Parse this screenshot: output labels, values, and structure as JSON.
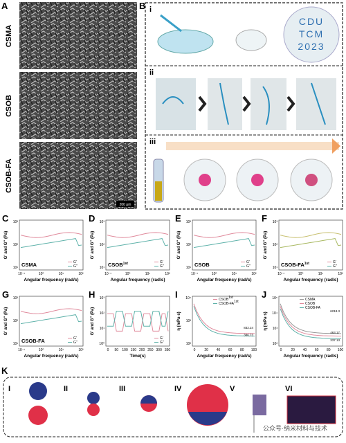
{
  "panel_a": {
    "label": "A",
    "samples": [
      "CSMA",
      "CSOB",
      "CSOB-FA"
    ],
    "scale_bar": "200 μm"
  },
  "panel_b": {
    "label": "B",
    "steps": [
      "i",
      "ii",
      "iii"
    ],
    "dish_text": [
      "CDU",
      "TCM",
      "2023"
    ]
  },
  "charts": [
    {
      "label": "C",
      "sample": {
        "name": "CSMA"
      },
      "ylabel": "G' and G'' (Pa)",
      "xlabel": "Angular frequency (rad/s)",
      "legend": [
        "G'",
        "G''"
      ],
      "yticks": [
        "10³",
        "10²",
        "10¹"
      ],
      "xticks": [
        "10⁻¹",
        "10⁰",
        "10¹",
        "10²"
      ]
    },
    {
      "label": "D",
      "sample": {
        "name": "CSOB",
        "sup": "1st"
      },
      "ylabel": "G' and G'' (Pa)",
      "xlabel": "Angular frequency (rad/s)",
      "legend": [
        "G'",
        "G''"
      ],
      "yticks": [
        "10³",
        "10²",
        "10¹"
      ],
      "xticks": [
        "10⁻¹",
        "10⁰",
        "10¹",
        "10²"
      ]
    },
    {
      "label": "E",
      "sample": {
        "name": "CSOB"
      },
      "ylabel": "G' and G'' (Pa)",
      "xlabel": "Angular frequency (rad/s)",
      "legend": [
        "G'",
        "G''"
      ],
      "yticks": [
        "10³",
        "10²",
        "10¹"
      ],
      "xticks": [
        "10⁻¹",
        "10⁰",
        "10¹",
        "10²"
      ]
    },
    {
      "label": "F",
      "sample": {
        "name": "CSOB-FA",
        "sup": "1st"
      },
      "ylabel": "G' and G'' (Pa)",
      "xlabel": "Angular frequency (rad/s)",
      "legend": [
        "G'",
        "G''"
      ],
      "yticks": [
        "10³",
        "10²",
        "10¹"
      ],
      "xticks": [
        "10⁻¹",
        "10⁰",
        "10¹",
        "10²"
      ]
    },
    {
      "label": "G",
      "sample": {
        "name": "CSOB-FA"
      },
      "ylabel": "G' and G'' (Pa)",
      "xlabel": "Angular frequency (rad/s)",
      "legend": [
        "G'",
        "G''"
      ],
      "yticks": [
        "10³",
        "10²",
        "10¹"
      ],
      "xticks": [
        "10⁻¹",
        "10⁰",
        "10¹",
        "10²"
      ]
    },
    {
      "label": "H",
      "ylabel": "G' and G'' (Pa)",
      "xlabel": "Time(s)",
      "legend": [
        "G'",
        "G''"
      ],
      "yticks": [
        "10³",
        "10²",
        "10¹",
        "10⁰"
      ],
      "xticks": [
        "0",
        "50",
        "100",
        "150",
        "200",
        "250",
        "300",
        "350"
      ]
    },
    {
      "label": "I",
      "ylabel": "η (mPa·s)",
      "xlabel": "Angular frequency (rad/s)",
      "legend": [
        {
          "name": "CSOB",
          "sup": "1st"
        },
        {
          "name": "CSOB-FA",
          "sup": "1st"
        }
      ],
      "annotations": [
        "832.24",
        "386.73"
      ],
      "yticks": [
        "10⁴",
        "10³",
        "10²"
      ],
      "xticks": [
        "0",
        "20",
        "40",
        "60",
        "80",
        "100"
      ]
    },
    {
      "label": "J",
      "ylabel": "η (mPa·s)",
      "xlabel": "Angular frequency (rad/s)",
      "legend": [
        "CSMA",
        "CSOB",
        "CSOB-FA"
      ],
      "annotations": [
        "6218.3",
        "463.17",
        "337.13"
      ],
      "yticks": [
        "10⁵",
        "10⁴",
        "10³",
        "10²"
      ],
      "xticks": [
        "0",
        "20",
        "40",
        "60",
        "80",
        "100"
      ]
    }
  ],
  "panel_k": {
    "label": "K",
    "steps": [
      "I",
      "II",
      "III",
      "IV",
      "V",
      "VI"
    ]
  },
  "watermark": "公众号·纳米材料与技术"
}
